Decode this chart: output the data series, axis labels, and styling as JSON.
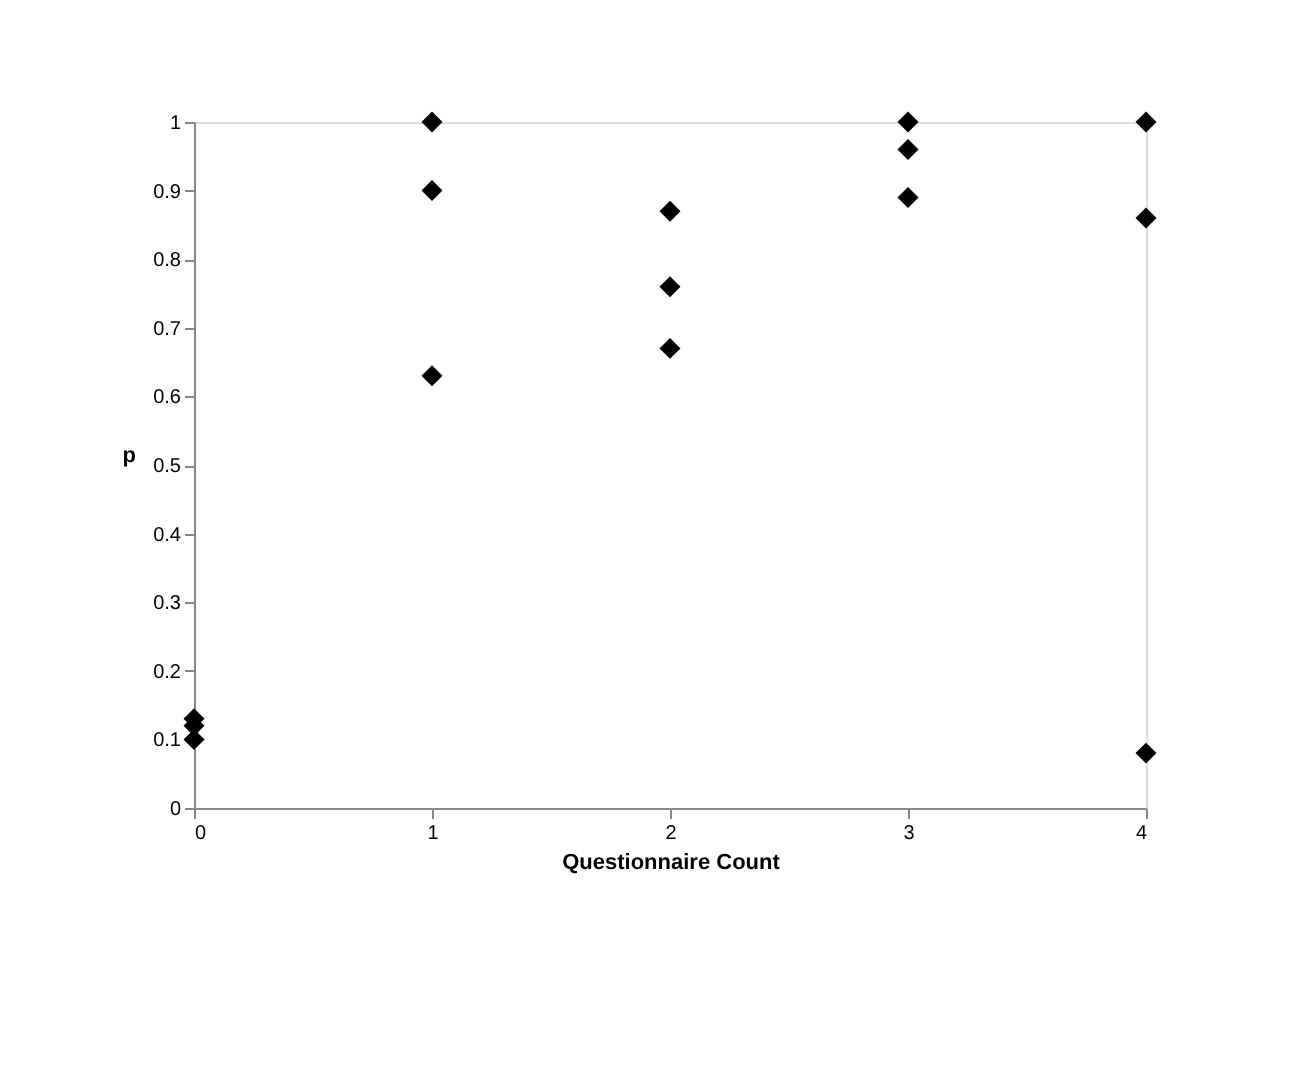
{
  "chart_data": {
    "type": "scatter",
    "xlabel": "Questionnaire Count",
    "ylabel": "p",
    "x": [
      0,
      0,
      0,
      1,
      1,
      1,
      2,
      2,
      2,
      3,
      3,
      3,
      4,
      4,
      4
    ],
    "series": [
      {
        "color": "#000000",
        "values": [
          0.13,
          0.12,
          0.1,
          1,
          0.9,
          0.63,
          0.87,
          0.76,
          0.67,
          1,
          0.96,
          0.89,
          1,
          0.86,
          0.08
        ]
      }
    ],
    "xlim": [
      0,
      4
    ],
    "xticks": [
      0,
      1,
      2,
      3,
      4
    ],
    "ylim": [
      0,
      1
    ],
    "yticks": [
      0,
      0.1,
      0.2,
      0.3,
      0.4,
      0.5,
      0.6,
      0.7,
      0.8,
      0.9,
      1
    ],
    "grid": false,
    "marker": "diamond"
  }
}
